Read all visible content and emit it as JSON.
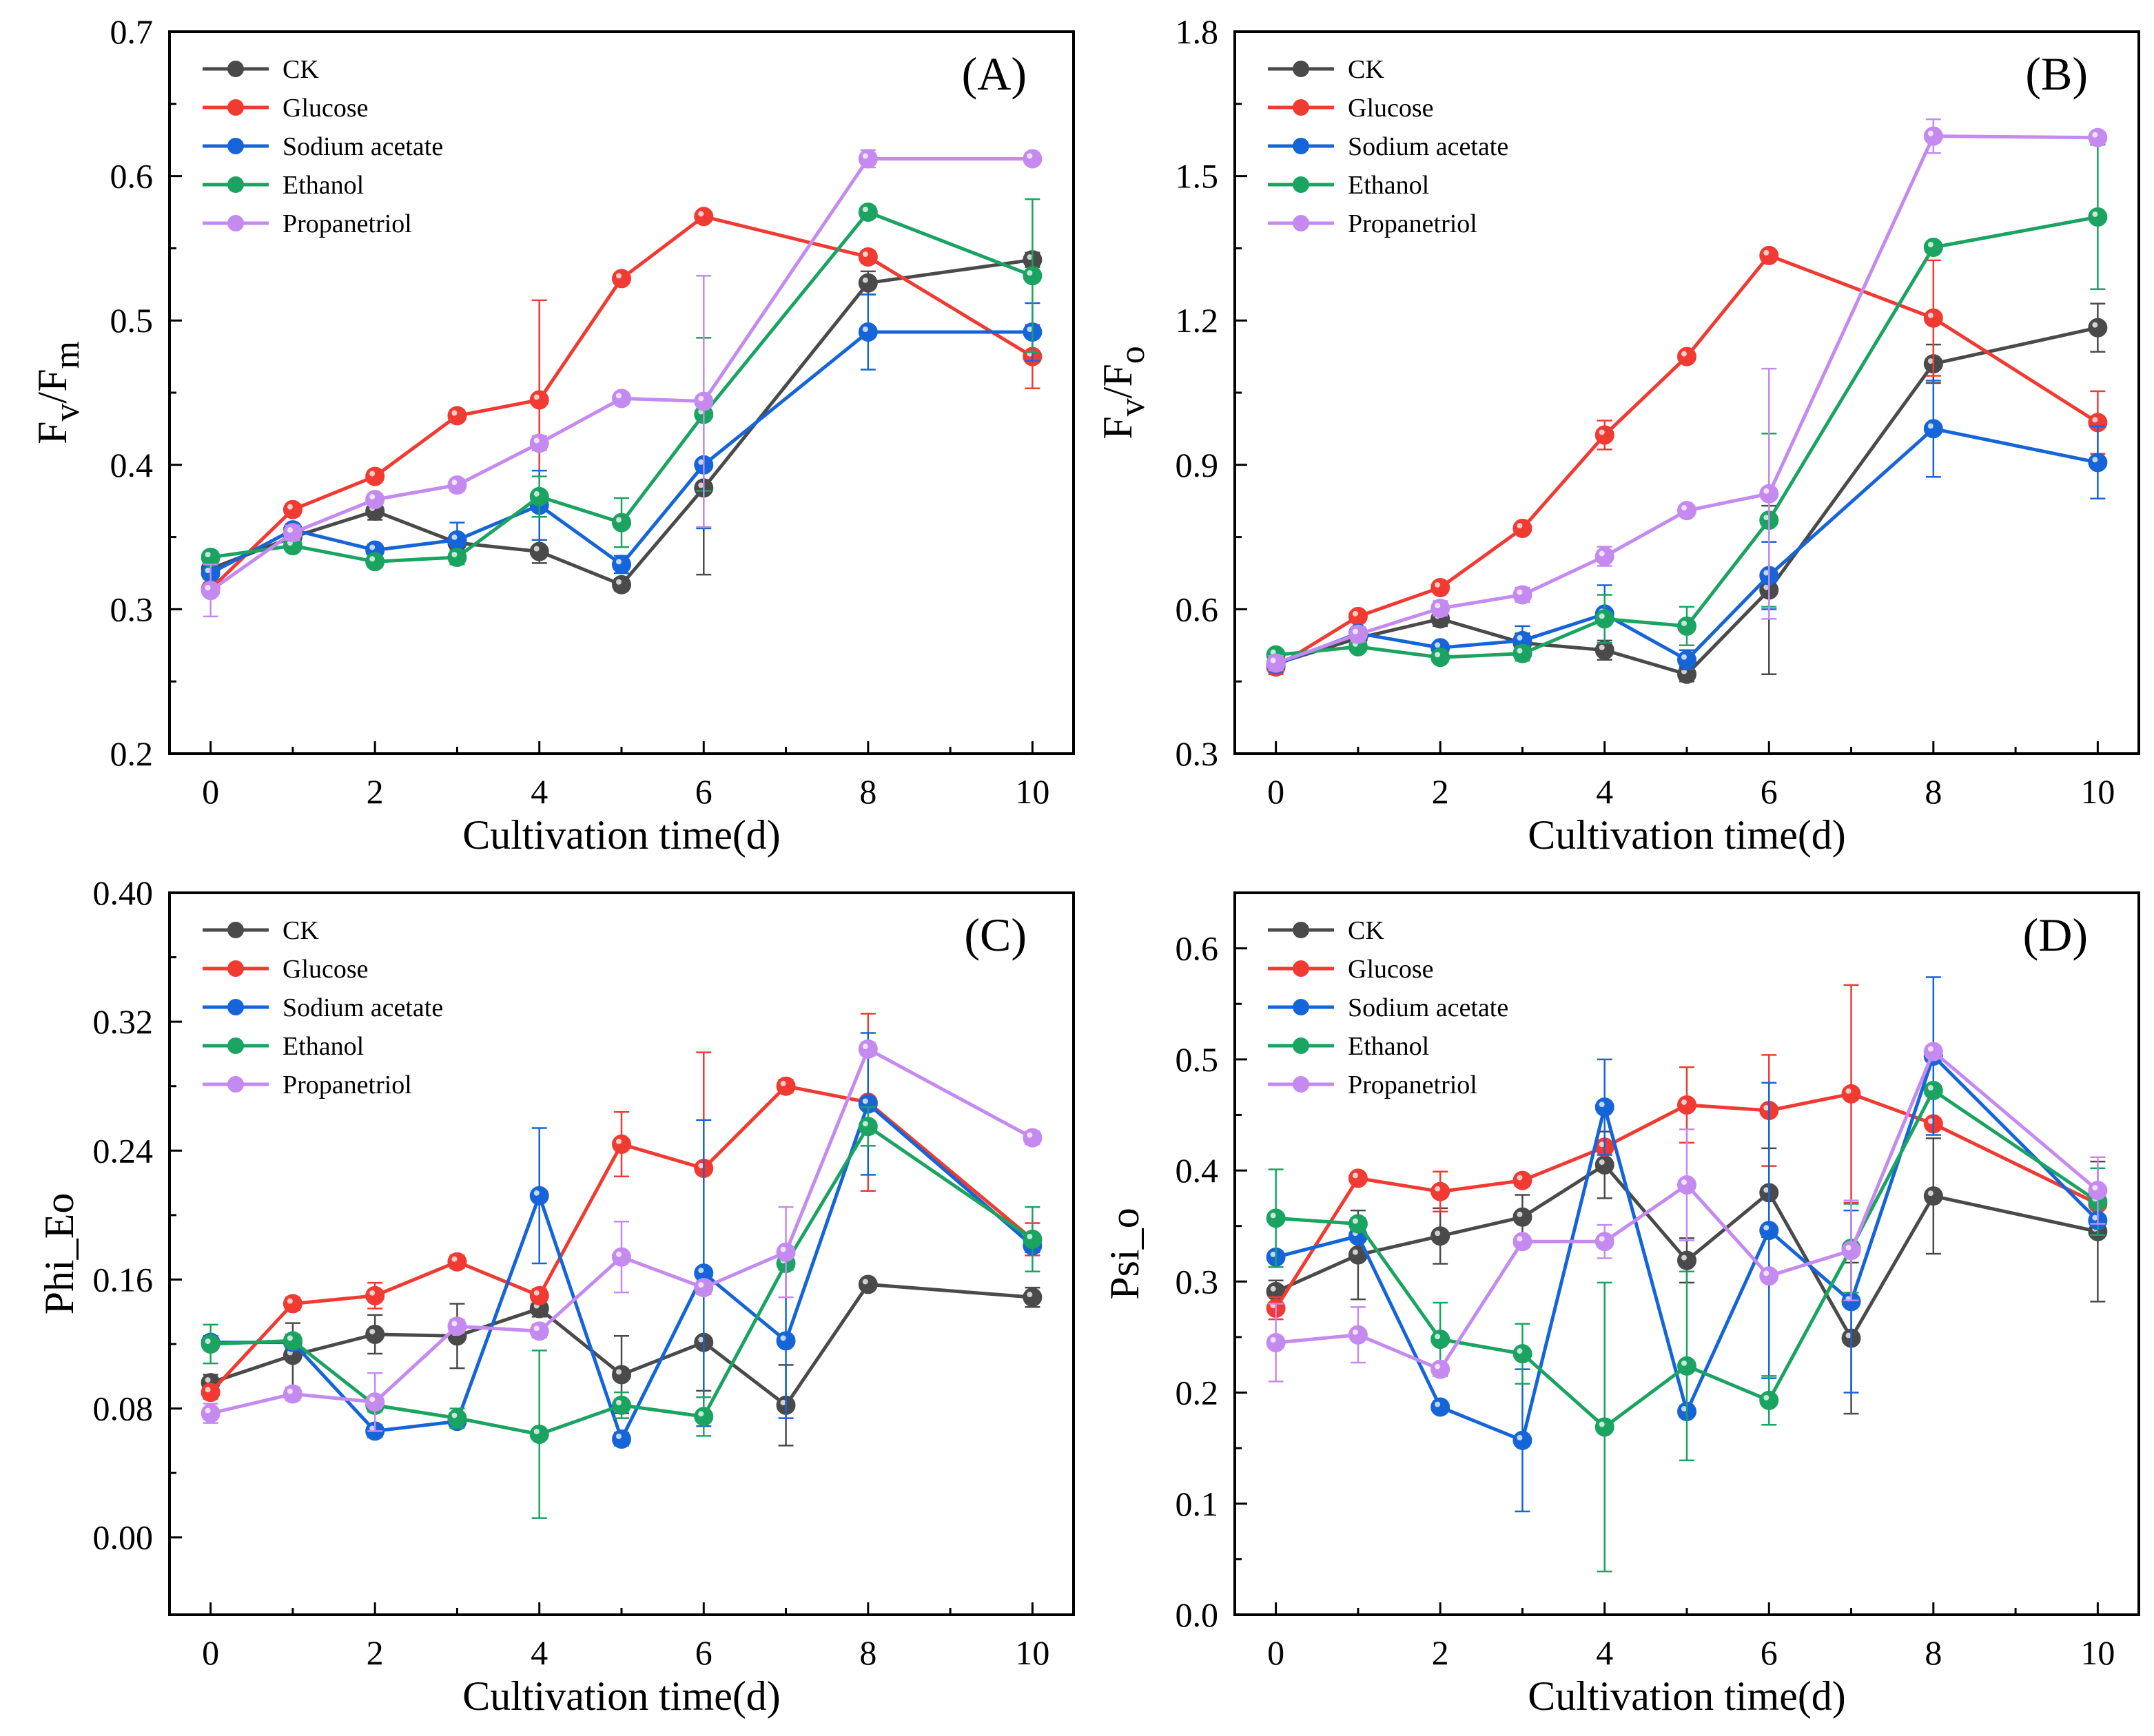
{
  "series_styles": [
    {
      "name": "CK",
      "color": "#4a4a4a"
    },
    {
      "name": "Glucose",
      "color": "#f03a32"
    },
    {
      "name": "Sodium acetate",
      "color": "#1565d8"
    },
    {
      "name": "Ethanol",
      "color": "#1aa361"
    },
    {
      "name": "Propanetriol",
      "color": "#c58af0"
    }
  ],
  "chart_data": [
    {
      "type": "line",
      "panel": "(A)",
      "xlabel": "Cultivation time(d)",
      "ylabel": "Fv/Fm",
      "ylabel_main": "F",
      "ylabel_sub1": "v",
      "ylabel_mid": "/F",
      "ylabel_sub2": "m",
      "xlim": [
        -0.5,
        10.5
      ],
      "ylim": [
        0.2,
        0.7
      ],
      "xticks": [
        0,
        2,
        4,
        6,
        8,
        10
      ],
      "yticks": [
        0.2,
        0.3,
        0.4,
        0.5,
        0.6,
        0.7
      ],
      "ytick_labels": [
        "0.2",
        "0.3",
        "0.4",
        "0.5",
        "0.6",
        "0.7"
      ],
      "legend": [
        "CK",
        "Glucose",
        "Sodium acetate",
        "Ethanol",
        "Propanetriol"
      ],
      "series": [
        {
          "name": "CK",
          "x": [
            0,
            1,
            2,
            3,
            4,
            5,
            6,
            8,
            10
          ],
          "values": [
            0.328,
            0.35,
            0.368,
            0.346,
            0.34,
            0.317,
            0.384,
            0.526,
            0.542
          ],
          "errors": [
            0.004,
            0.005,
            0.006,
            0.005,
            0.008,
            0.004,
            0.06,
            0.008,
            0.005
          ]
        },
        {
          "name": "Glucose",
          "x": [
            0,
            1,
            2,
            3,
            4,
            5,
            6,
            8,
            10
          ],
          "values": [
            0.314,
            0.369,
            0.392,
            0.434,
            0.445,
            0.529,
            0.572,
            0.544,
            0.475
          ],
          "errors": [
            0.004,
            0.004,
            0.004,
            0.004,
            0.069,
            0.003,
            0.003,
            0.004,
            0.022
          ]
        },
        {
          "name": "Sodium acetate",
          "x": [
            0,
            1,
            2,
            3,
            4,
            5,
            6,
            8,
            10
          ],
          "values": [
            0.325,
            0.355,
            0.341,
            0.348,
            0.372,
            0.331,
            0.4,
            0.492,
            0.492
          ],
          "errors": [
            0.004,
            0.004,
            0.004,
            0.012,
            0.024,
            0.006,
            0.044,
            0.026,
            0.02
          ]
        },
        {
          "name": "Ethanol",
          "x": [
            0,
            1,
            2,
            3,
            4,
            5,
            6,
            8,
            10
          ],
          "values": [
            0.336,
            0.344,
            0.333,
            0.336,
            0.378,
            0.36,
            0.435,
            0.575,
            0.531
          ],
          "errors": [
            0.004,
            0.004,
            0.004,
            0.005,
            0.014,
            0.017,
            0.053,
            0.004,
            0.053
          ]
        },
        {
          "name": "Propanetriol",
          "x": [
            0,
            1,
            2,
            3,
            4,
            5,
            6,
            8,
            10
          ],
          "values": [
            0.313,
            0.353,
            0.376,
            0.386,
            0.415,
            0.446,
            0.444,
            0.612,
            0.612
          ],
          "errors": [
            0.018,
            0.005,
            0.004,
            0.004,
            0.005,
            0.004,
            0.087,
            0.006,
            0.004
          ]
        }
      ]
    },
    {
      "type": "line",
      "panel": "(B)",
      "xlabel": "Cultivation time(d)",
      "ylabel": "Fv/Fo",
      "ylabel_main": "F",
      "ylabel_sub1": "v",
      "ylabel_mid": "/F",
      "ylabel_sub2": "o",
      "xlim": [
        -0.5,
        10.5
      ],
      "ylim": [
        0.3,
        1.8
      ],
      "xticks": [
        0,
        2,
        4,
        6,
        8,
        10
      ],
      "yticks": [
        0.3,
        0.6,
        0.9,
        1.2,
        1.5,
        1.8
      ],
      "ytick_labels": [
        "0.3",
        "0.6",
        "0.9",
        "1.2",
        "1.5",
        "1.8"
      ],
      "legend": [
        "CK",
        "Glucose",
        "Sodium acetate",
        "Ethanol",
        "Propanetriol"
      ],
      "series": [
        {
          "name": "CK",
          "x": [
            0,
            1,
            2,
            3,
            4,
            5,
            6,
            8,
            10
          ],
          "values": [
            0.487,
            0.54,
            0.58,
            0.53,
            0.515,
            0.465,
            0.64,
            1.11,
            1.185
          ],
          "errors": [
            0.015,
            0.015,
            0.015,
            0.02,
            0.02,
            0.015,
            0.175,
            0.04,
            0.05
          ]
        },
        {
          "name": "Glucose",
          "x": [
            0,
            1,
            2,
            3,
            4,
            5,
            6,
            8,
            10
          ],
          "values": [
            0.48,
            0.585,
            0.645,
            0.768,
            0.962,
            1.125,
            1.335,
            1.205,
            0.988
          ],
          "errors": [
            0.015,
            0.01,
            0.01,
            0.01,
            0.03,
            0.01,
            0.01,
            0.12,
            0.065
          ]
        },
        {
          "name": "Sodium acetate",
          "x": [
            0,
            1,
            2,
            3,
            4,
            5,
            6,
            8,
            10
          ],
          "values": [
            0.485,
            0.55,
            0.52,
            0.535,
            0.59,
            0.495,
            0.67,
            0.975,
            0.905
          ],
          "errors": [
            0.015,
            0.01,
            0.01,
            0.03,
            0.06,
            0.02,
            0.07,
            0.1,
            0.075
          ]
        },
        {
          "name": "Ethanol",
          "x": [
            0,
            1,
            2,
            3,
            4,
            5,
            6,
            8,
            10
          ],
          "values": [
            0.505,
            0.522,
            0.5,
            0.508,
            0.58,
            0.565,
            0.785,
            1.352,
            1.415
          ],
          "errors": [
            0.01,
            0.01,
            0.01,
            0.015,
            0.05,
            0.04,
            0.18,
            0.01,
            0.15
          ]
        },
        {
          "name": "Propanetriol",
          "x": [
            0,
            1,
            2,
            3,
            4,
            5,
            6,
            8,
            10
          ],
          "values": [
            0.488,
            0.548,
            0.602,
            0.63,
            0.71,
            0.805,
            0.84,
            1.583,
            1.58
          ],
          "errors": [
            0.015,
            0.015,
            0.015,
            0.015,
            0.02,
            0.01,
            0.26,
            0.035,
            0.01
          ]
        }
      ]
    },
    {
      "type": "line",
      "panel": "(C)",
      "xlabel": "Cultivation time(d)",
      "ylabel": "Phi_Eo",
      "xlim": [
        -0.5,
        10.5
      ],
      "ylim": [
        -0.048,
        0.4
      ],
      "xticks": [
        0,
        2,
        4,
        6,
        8,
        10
      ],
      "yticks": [
        0,
        0.08,
        0.16,
        0.24,
        0.32,
        0.4
      ],
      "ytick_labels": [
        "0.00",
        "0.08",
        "0.16",
        "0.24",
        "0.32",
        "0.40"
      ],
      "legend": [
        "CK",
        "Glucose",
        "Sodium acetate",
        "Ethanol",
        "Propanetriol"
      ],
      "series": [
        {
          "name": "CK",
          "x": [
            0,
            1,
            2,
            3,
            4,
            5,
            6,
            7,
            8,
            10
          ],
          "values": [
            0.096,
            0.113,
            0.126,
            0.125,
            0.142,
            0.101,
            0.121,
            0.082,
            0.157,
            0.149
          ],
          "errors": [
            0.005,
            0.02,
            0.012,
            0.02,
            0.005,
            0.024,
            0.03,
            0.025,
            0.003,
            0.006
          ]
        },
        {
          "name": "Glucose",
          "x": [
            0,
            1,
            2,
            3,
            4,
            5,
            6,
            7,
            8,
            10
          ],
          "values": [
            0.09,
            0.145,
            0.15,
            0.171,
            0.15,
            0.244,
            0.229,
            0.28,
            0.27,
            0.185
          ],
          "errors": [
            0.004,
            0.004,
            0.008,
            0.004,
            0.004,
            0.02,
            0.072,
            0.004,
            0.055,
            0.01
          ]
        },
        {
          "name": "Sodium acetate",
          "x": [
            0,
            1,
            2,
            3,
            4,
            5,
            6,
            7,
            8,
            10
          ],
          "values": [
            0.121,
            0.121,
            0.066,
            0.072,
            0.212,
            0.061,
            0.164,
            0.122,
            0.269,
            0.181
          ],
          "errors": [
            0.004,
            0.004,
            0.004,
            0.004,
            0.042,
            0.004,
            0.095,
            0.048,
            0.044,
            0.004
          ]
        },
        {
          "name": "Ethanol",
          "x": [
            0,
            1,
            2,
            3,
            4,
            5,
            6,
            7,
            8,
            10
          ],
          "values": [
            0.12,
            0.122,
            0.082,
            0.074,
            0.064,
            0.082,
            0.075,
            0.17,
            0.255,
            0.185
          ],
          "errors": [
            0.012,
            0.004,
            0.004,
            0.006,
            0.052,
            0.008,
            0.012,
            0.004,
            0.012,
            0.02
          ]
        },
        {
          "name": "Propanetriol",
          "x": [
            0,
            1,
            2,
            3,
            4,
            5,
            6,
            7,
            8,
            10
          ],
          "values": [
            0.077,
            0.089,
            0.084,
            0.131,
            0.128,
            0.174,
            0.155,
            0.177,
            0.303,
            0.248
          ],
          "errors": [
            0.006,
            0.004,
            0.018,
            0.004,
            0.004,
            0.022,
            0.004,
            0.028,
            0.004,
            0.004
          ]
        }
      ]
    },
    {
      "type": "line",
      "panel": "(D)",
      "xlabel": "Cultivation time(d)",
      "ylabel": "Psi_o",
      "xlim": [
        -0.5,
        10.5
      ],
      "ylim": [
        0,
        0.65
      ],
      "xticks": [
        0,
        2,
        4,
        6,
        8,
        10
      ],
      "yticks": [
        0,
        0.1,
        0.2,
        0.3,
        0.4,
        0.5,
        0.6
      ],
      "ytick_labels": [
        "0.0",
        "0.1",
        "0.2",
        "0.3",
        "0.4",
        "0.5",
        "0.6"
      ],
      "legend": [
        "CK",
        "Glucose",
        "Sodium acetate",
        "Ethanol",
        "Propanetriol"
      ],
      "series": [
        {
          "name": "CK",
          "x": [
            0,
            1,
            2,
            3,
            4,
            5,
            6,
            7,
            8,
            10
          ],
          "values": [
            0.291,
            0.324,
            0.341,
            0.358,
            0.405,
            0.319,
            0.38,
            0.249,
            0.377,
            0.345
          ],
          "errors": [
            0.01,
            0.04,
            0.025,
            0.02,
            0.03,
            0.02,
            0.04,
            0.068,
            0.052,
            0.063
          ]
        },
        {
          "name": "Glucose",
          "x": [
            0,
            1,
            2,
            3,
            4,
            5,
            6,
            7,
            8,
            10
          ],
          "values": [
            0.276,
            0.393,
            0.381,
            0.391,
            0.421,
            0.459,
            0.454,
            0.469,
            0.442,
            0.37
          ],
          "errors": [
            0.01,
            0.005,
            0.018,
            0.005,
            0.005,
            0.034,
            0.05,
            0.098,
            0.005,
            0.005
          ]
        },
        {
          "name": "Sodium acetate",
          "x": [
            0,
            1,
            2,
            3,
            4,
            5,
            6,
            7,
            8,
            10
          ],
          "values": [
            0.322,
            0.341,
            0.187,
            0.157,
            0.457,
            0.183,
            0.346,
            0.282,
            0.503,
            0.355
          ],
          "errors": [
            0.005,
            0.005,
            0.005,
            0.064,
            0.043,
            0.005,
            0.133,
            0.082,
            0.071,
            0.005
          ]
        },
        {
          "name": "Ethanol",
          "x": [
            0,
            1,
            2,
            3,
            4,
            5,
            6,
            7,
            8,
            10
          ],
          "values": [
            0.357,
            0.352,
            0.248,
            0.235,
            0.169,
            0.224,
            0.193,
            0.33,
            0.472,
            0.372
          ],
          "errors": [
            0.044,
            0.005,
            0.033,
            0.027,
            0.13,
            0.085,
            0.022,
            0.04,
            0.005,
            0.03
          ]
        },
        {
          "name": "Propanetriol",
          "x": [
            0,
            1,
            2,
            3,
            4,
            5,
            6,
            7,
            8,
            10
          ],
          "values": [
            0.245,
            0.252,
            0.221,
            0.336,
            0.336,
            0.387,
            0.305,
            0.328,
            0.507,
            0.382
          ],
          "errors": [
            0.035,
            0.025,
            0.005,
            0.005,
            0.015,
            0.05,
            0.005,
            0.045,
            0.005,
            0.03
          ]
        }
      ]
    }
  ]
}
